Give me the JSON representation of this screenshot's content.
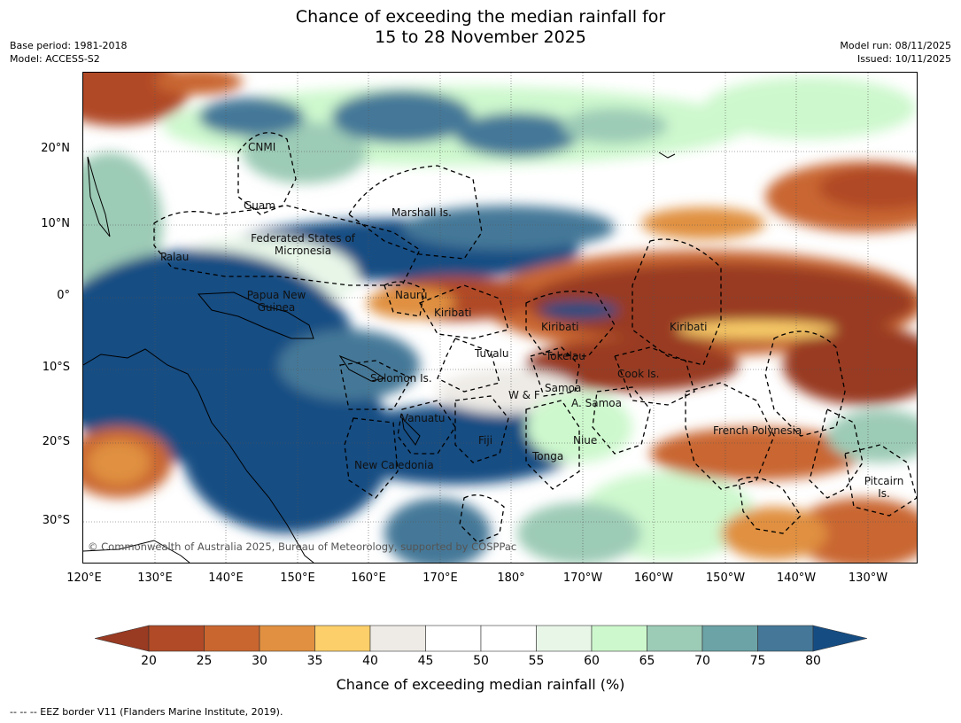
{
  "title_line1": "Chance of exceeding the median rainfall for",
  "title_line2": "15 to 28 November 2025",
  "base_period": "Base period: 1981-2018",
  "model": "Model: ACCESS-S2",
  "model_run": "Model run: 08/11/2025",
  "issued": "Issued: 10/11/2025",
  "lat_ticks": [
    "20°N",
    "10°N",
    "0°",
    "10°S",
    "20°S",
    "30°S"
  ],
  "lon_ticks": [
    "120°E",
    "130°E",
    "140°E",
    "150°E",
    "160°E",
    "170°E",
    "180°",
    "170°W",
    "160°W",
    "150°W",
    "140°W",
    "130°W"
  ],
  "regions": {
    "cnmi": "CNMI",
    "guam": "Guam",
    "marshall": "Marshall Is.",
    "fsm": "Federated States of Micronesia",
    "palau": "Palau",
    "png": "Papua New Guinea",
    "nauru": "Nauru",
    "kiribati_w": "Kiribati",
    "kiribati_c": "Kiribati",
    "kiribati_e": "Kiribati",
    "tuvalu": "Tuvalu",
    "tokelau": "Tokelau",
    "cook": "Cook Is.",
    "solomon": "Solomon Is.",
    "wf": "W & F",
    "samoa": "Samoa",
    "amsamoa": "A. Samoa",
    "vanuatu": "Vanuatu",
    "fiji": "Fiji",
    "niue": "Niue",
    "frenchpoly": "French Polynesia",
    "tonga": "Tonga",
    "newcal": "New Caledonia",
    "pitcairn": "Pitcairn Is."
  },
  "copyright": "© Commonwealth of Australia 2025, Bureau of Meteorology, supported by COSPPac",
  "colorbar": {
    "labels": [
      "20",
      "25",
      "30",
      "35",
      "40",
      "45",
      "50",
      "55",
      "60",
      "65",
      "70",
      "75",
      "80"
    ],
    "colors": [
      "#993a22",
      "#b04a27",
      "#c96630",
      "#e09040",
      "#fccf6a",
      "#eeebe6",
      "#ffffff",
      "#ffffff",
      "#e8f6e8",
      "#cdf8cd",
      "#9ccbb6",
      "#6ca3a6",
      "#457898",
      "#154d83"
    ],
    "title": "Chance of exceeding median rainfall (%)"
  },
  "footnote": "-- -- -- EEZ border V11 (Flanders Marine Institute, 2019)."
}
